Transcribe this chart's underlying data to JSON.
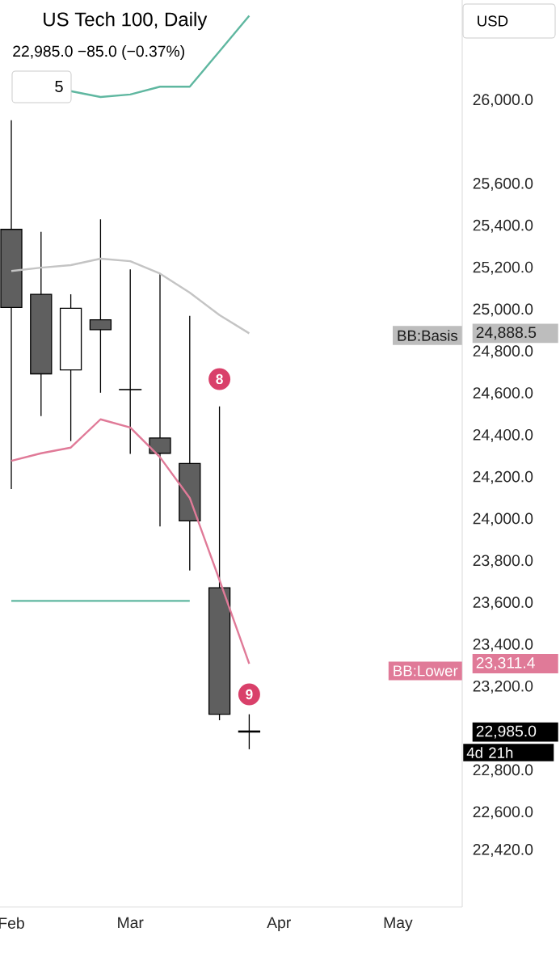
{
  "chart_data": {
    "type": "candlestick",
    "title": "US Tech 100, Daily",
    "subtitle": "22,985.0 −85.0 (−0.37%)",
    "categories": [
      "Feb",
      null,
      null,
      null,
      "Mar",
      null,
      null,
      null,
      null,
      "Apr",
      null,
      null,
      null,
      "May"
    ],
    "ohlc": [
      [
        25385,
        25906,
        24145,
        25012
      ],
      [
        25075,
        25373,
        24493,
        24695
      ],
      [
        24714,
        25075,
        24374,
        25008
      ],
      [
        24953,
        25433,
        24605,
        24906
      ],
      [
        24620,
        25194,
        24313,
        24620
      ],
      [
        24389,
        25174,
        23967,
        24316
      ],
      [
        24267,
        24972,
        23756,
        23993
      ],
      [
        23674,
        24540,
        23041,
        23070
      ],
      [
        22990,
        23070,
        22903,
        22985
      ],
      null,
      null,
      null,
      null,
      null
    ],
    "series": [
      {
        "type": "line",
        "color": "#5fb7a0",
        "values": [
          null,
          null,
          26045,
          26017,
          26029,
          26066,
          26066,
          26235,
          26405,
          null,
          null,
          null,
          null,
          null
        ]
      },
      {
        "type": "line",
        "color": "#c4c4c4",
        "values": [
          25186,
          25202,
          25214,
          25245,
          25233,
          25174,
          25083,
          24976,
          24888.5,
          null,
          null,
          null,
          null,
          null
        ]
      },
      {
        "type": "line",
        "color": "#e07a98",
        "values": [
          24280,
          24316,
          24343,
          24478,
          24439,
          24297,
          24103,
          23711,
          23311.4,
          null,
          null,
          null,
          null,
          null
        ]
      },
      {
        "type": "line",
        "color": "#5fb7a0",
        "values": [
          23611,
          23611,
          23611,
          23611,
          23611,
          23611,
          23611,
          null,
          null,
          null,
          null,
          null,
          null,
          null
        ]
      }
    ],
    "ylim": [
      22150,
      26480
    ],
    "yticks": [
      {
        "value": 26000,
        "label": "26,000.0"
      },
      {
        "value": 25600,
        "label": "25,600.0"
      },
      {
        "value": 25400,
        "label": "25,400.0"
      },
      {
        "value": 25200,
        "label": "25,200.0"
      },
      {
        "value": 25000,
        "label": "25,000.0"
      },
      {
        "value": 24888.5,
        "label": "24,888.5"
      },
      {
        "value": 24800,
        "label": "24,800.0"
      },
      {
        "value": 24600,
        "label": "24,600.0"
      },
      {
        "value": 24400,
        "label": "24,400.0"
      },
      {
        "value": 24200,
        "label": "24,200.0"
      },
      {
        "value": 24000,
        "label": "24,000.0"
      },
      {
        "value": 23800,
        "label": "23,800.0"
      },
      {
        "value": 23600,
        "label": "23,600.0"
      },
      {
        "value": 23400,
        "label": "23,400.0"
      },
      {
        "value": 23311.4,
        "label": "23,311.4"
      },
      {
        "value": 23200,
        "label": "23,200.0"
      },
      {
        "value": 22985,
        "label": "22,985.0"
      },
      {
        "value": 22800,
        "label": "22,800.0"
      },
      {
        "value": 22600,
        "label": "22,600.0"
      },
      {
        "value": 22420,
        "label": "22,420.0"
      }
    ],
    "annotations": [
      "5",
      "USD",
      "BB:Basis",
      "BB:Lower",
      "4d 21h",
      "8",
      "9"
    ]
  }
}
